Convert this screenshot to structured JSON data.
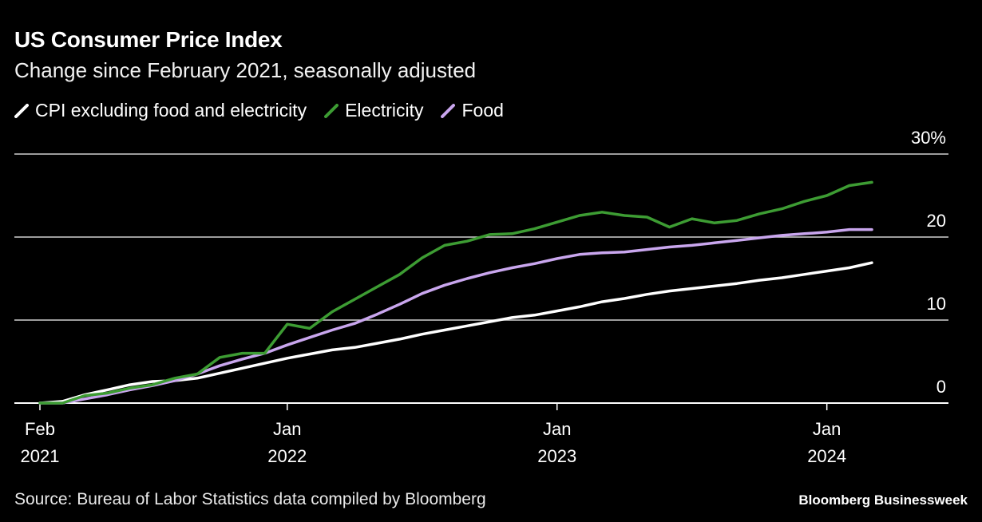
{
  "header": {
    "title": "US Consumer Price Index",
    "subtitle": "Change since February 2021, seasonally adjusted"
  },
  "footer": {
    "source": "Source: Bureau of Labor Statistics data compiled by Bloomberg",
    "brand": "Bloomberg Businessweek"
  },
  "chart_data": {
    "type": "line",
    "title": "US Consumer Price Index",
    "subtitle": "Change since February 2021, seasonally adjusted",
    "y_ticks": [
      "30%",
      "20",
      "10",
      "0"
    ],
    "y_tick_values": [
      30,
      20,
      10,
      0
    ],
    "ylim": [
      0,
      30
    ],
    "x_ticks": [
      {
        "month": "Feb",
        "year": "2021",
        "index": 0
      },
      {
        "month": "Jan",
        "year": "2022",
        "index": 11
      },
      {
        "month": "Jan",
        "year": "2023",
        "index": 23
      },
      {
        "month": "Jan",
        "year": "2024",
        "index": 35
      }
    ],
    "x_start": "2021-02",
    "grid": true,
    "legend_position": "top-left",
    "series": [
      {
        "name": "CPI excluding food and electricity",
        "color": "#ffffff",
        "values": [
          0,
          0.2,
          1.0,
          1.6,
          2.2,
          2.6,
          2.7,
          3.0,
          3.6,
          4.2,
          4.8,
          5.4,
          5.9,
          6.4,
          6.7,
          7.2,
          7.7,
          8.3,
          8.8,
          9.3,
          9.8,
          10.3,
          10.6,
          11.1,
          11.6,
          12.2,
          12.6,
          13.1,
          13.5,
          13.8,
          14.1,
          14.4,
          14.8,
          15.1,
          15.5,
          15.9,
          16.3,
          16.9
        ]
      },
      {
        "name": "Electricity",
        "color": "#3d9c33",
        "values": [
          0,
          0,
          0.9,
          1.2,
          1.8,
          2.2,
          3.0,
          3.5,
          5.5,
          6.0,
          6.0,
          9.5,
          9.0,
          11.0,
          12.5,
          14.0,
          15.5,
          17.5,
          19.0,
          19.5,
          20.3,
          20.4,
          21.0,
          21.8,
          22.6,
          23.0,
          22.6,
          22.4,
          21.2,
          22.2,
          21.7,
          22.0,
          22.8,
          23.4,
          24.3,
          25.0,
          26.2,
          26.6
        ]
      },
      {
        "name": "Food",
        "color": "#c9a6ee",
        "values": [
          0,
          0,
          0.5,
          1.0,
          1.6,
          2.1,
          2.7,
          3.5,
          4.5,
          5.3,
          6.0,
          7.0,
          7.9,
          8.8,
          9.6,
          10.7,
          11.9,
          13.2,
          14.2,
          15.0,
          15.7,
          16.3,
          16.8,
          17.4,
          17.9,
          18.1,
          18.2,
          18.5,
          18.8,
          19.0,
          19.3,
          19.6,
          19.9,
          20.2,
          20.4,
          20.6,
          20.9,
          20.9
        ]
      }
    ]
  }
}
